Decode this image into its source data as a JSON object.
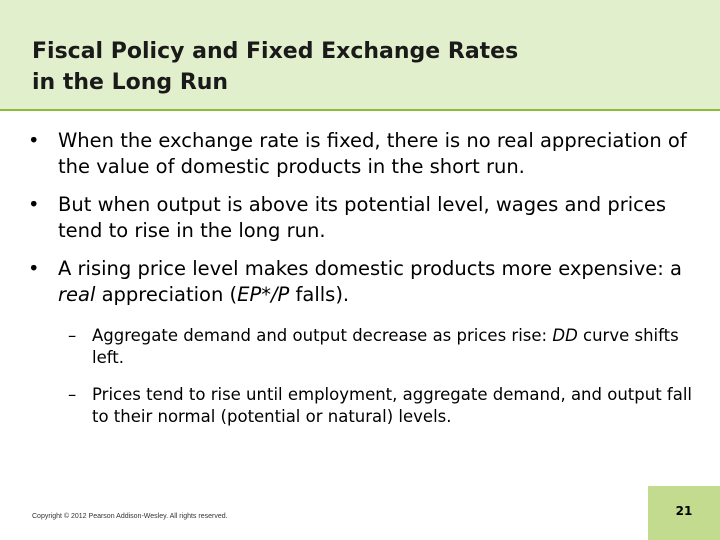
{
  "slide": {
    "title_line1": "Fiscal Policy and Fixed Exchange Rates",
    "title_line2": "in the Long Run",
    "bullets": [
      {
        "marker": "•",
        "text": "When the exchange rate is fixed, there is no real appreciation of the value of domestic products in the short run."
      },
      {
        "marker": "•",
        "text": "But when output is above its potential level, wages and prices tend to rise in the long run."
      },
      {
        "marker": "•",
        "text_a": "A rising price level makes domestic products more expensive: a ",
        "text_b_italic": "real",
        "text_c": " appreciation (",
        "text_d_italic": "EP*/P",
        "text_e": " falls)."
      }
    ],
    "sub_bullets": [
      {
        "marker": "–",
        "text_a": "Aggregate demand and output decrease as prices rise: ",
        "text_b_italic": "DD",
        "text_c": " curve shifts left."
      },
      {
        "marker": "–",
        "text": "Prices tend to rise until employment, aggregate demand, and output fall to their normal (potential or natural) levels."
      }
    ],
    "footer": "Copyright © 2012 Pearson Addison-Wesley. All rights reserved.",
    "page_number": "21"
  },
  "colors": {
    "title_band": "#e2efcc",
    "accent_rule": "#8dbb3a",
    "page_box": "#c2db8e"
  }
}
